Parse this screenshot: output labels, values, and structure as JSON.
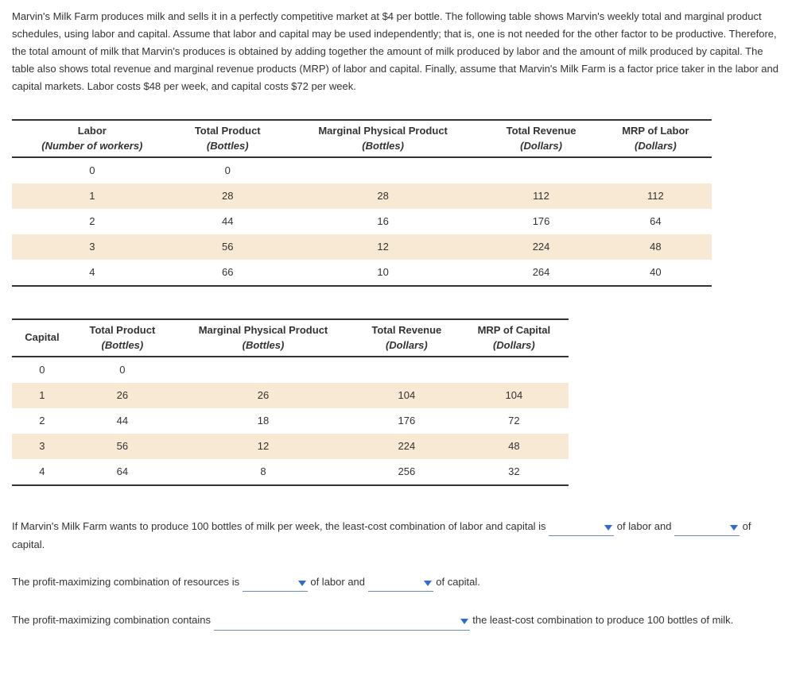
{
  "intro": "Marvin's Milk Farm produces milk and sells it in a perfectly competitive market at $4 per bottle. The following table shows Marvin's weekly total and marginal product schedules, using labor and capital. Assume that labor and capital may be used independently; that is, one is not needed for the other factor to be productive. Therefore, the total amount of milk that Marvin's produces is obtained by adding together the amount of milk produced by labor and the amount of milk produced by capital. The table also shows total revenue and marginal revenue products (MRP) of labor and capital. Finally, assume that Marvin's Milk Farm is a factor price taker in the labor and capital markets. Labor costs $48 per week, and capital costs $72 per week.",
  "laborTable": {
    "headers": {
      "c1": "Labor",
      "c1sub": "(Number of workers)",
      "c2": "Total Product",
      "c2sub": "(Bottles)",
      "c3": "Marginal Physical Product",
      "c3sub": "(Bottles)",
      "c4": "Total Revenue",
      "c4sub": "(Dollars)",
      "c5": "MRP of Labor",
      "c5sub": "(Dollars)"
    },
    "rows": [
      {
        "hl": false,
        "c1": "0",
        "c2": "0",
        "c3": "",
        "c4": "",
        "c5": ""
      },
      {
        "hl": true,
        "c1": "1",
        "c2": "28",
        "c3": "28",
        "c4": "112",
        "c5": "112"
      },
      {
        "hl": false,
        "c1": "2",
        "c2": "44",
        "c3": "16",
        "c4": "176",
        "c5": "64"
      },
      {
        "hl": true,
        "c1": "3",
        "c2": "56",
        "c3": "12",
        "c4": "224",
        "c5": "48"
      },
      {
        "hl": false,
        "c1": "4",
        "c2": "66",
        "c3": "10",
        "c4": "264",
        "c5": "40"
      }
    ]
  },
  "capitalTable": {
    "headers": {
      "c1": "Capital",
      "c1sub": "",
      "c2": "Total Product",
      "c2sub": "(Bottles)",
      "c3": "Marginal Physical Product",
      "c3sub": "(Bottles)",
      "c4": "Total Revenue",
      "c4sub": "(Dollars)",
      "c5": "MRP of Capital",
      "c5sub": "(Dollars)"
    },
    "rows": [
      {
        "hl": false,
        "c1": "0",
        "c2": "0",
        "c3": "",
        "c4": "",
        "c5": ""
      },
      {
        "hl": true,
        "c1": "1",
        "c2": "26",
        "c3": "26",
        "c4": "104",
        "c5": "104"
      },
      {
        "hl": false,
        "c1": "2",
        "c2": "44",
        "c3": "18",
        "c4": "176",
        "c5": "72"
      },
      {
        "hl": true,
        "c1": "3",
        "c2": "56",
        "c3": "12",
        "c4": "224",
        "c5": "48"
      },
      {
        "hl": false,
        "c1": "4",
        "c2": "64",
        "c3": "8",
        "c4": "256",
        "c5": "32"
      }
    ]
  },
  "q1": {
    "pre": "If Marvin's Milk Farm wants to produce 100 bottles of milk per week, the least-cost combination of labor and capital is ",
    "mid1": " of labor and ",
    "mid2": " of capital."
  },
  "q2": {
    "pre": "The profit-maximizing combination of resources is ",
    "mid1": " of labor and ",
    "mid2": " of capital."
  },
  "q3": {
    "pre": "The profit-maximizing combination contains ",
    "post": " the least-cost combination to produce 100 bottles of milk."
  },
  "colors": {
    "highlight": "#f7e9d4",
    "dropdown_border": "#6c8cbf",
    "dropdown_fill": "#2f6bd6"
  }
}
